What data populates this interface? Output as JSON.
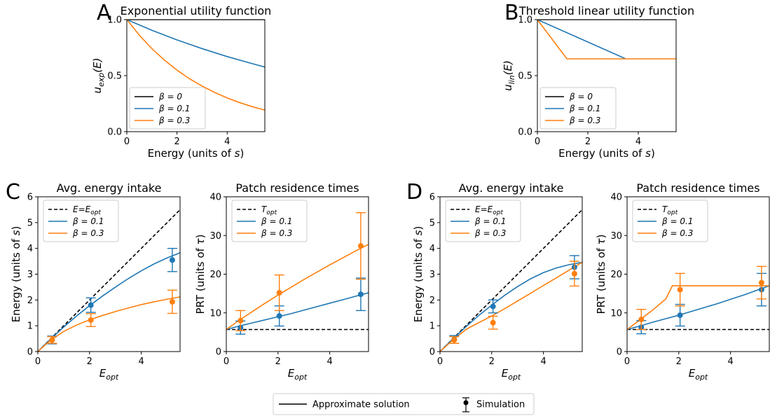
{
  "colors": {
    "black": "#000000",
    "blue": "#1f77b4",
    "orange": "#ff7f0e"
  },
  "chart_data": [
    {
      "id": "A",
      "panel_letter": "A",
      "type": "line",
      "title": "Exponential utility function",
      "xlabel": "Energy (units of s)",
      "ylabel": "u_exp(E)",
      "xlim": [
        0,
        5.5
      ],
      "ylim": [
        0,
        1.0
      ],
      "xticks": [
        0,
        2,
        4
      ],
      "xtick_labels": [
        "0",
        "2",
        "4"
      ],
      "yticks": [
        0.0,
        0.5,
        1.0
      ],
      "ytick_labels": [
        "0.0",
        "0.5",
        "1.0"
      ],
      "legend_position": "bottom-left",
      "series": [
        {
          "name": "β = 0",
          "color": "#000000",
          "x": [
            0,
            1,
            2,
            3,
            4,
            5,
            5.5
          ],
          "y": [
            1.0,
            1.0,
            1.0,
            1.0,
            1.0,
            1.0,
            1.0
          ]
        },
        {
          "name": "β = 0.1",
          "color": "#1f77b4",
          "x": [
            0,
            1,
            2,
            3,
            4,
            5,
            5.5
          ],
          "y": [
            1.0,
            0.905,
            0.819,
            0.741,
            0.67,
            0.607,
            0.577
          ]
        },
        {
          "name": "β = 0.3",
          "color": "#ff7f0e",
          "x": [
            0,
            0.5,
            1,
            1.5,
            2,
            2.5,
            3,
            3.5,
            4,
            4.5,
            5,
            5.5
          ],
          "y": [
            1.0,
            0.861,
            0.741,
            0.638,
            0.549,
            0.472,
            0.407,
            0.35,
            0.301,
            0.259,
            0.223,
            0.192
          ]
        }
      ]
    },
    {
      "id": "B",
      "panel_letter": "B",
      "type": "line",
      "title": "Threshold linear utility function",
      "xlabel": "Energy (units of s)",
      "ylabel": "u_lin(E)",
      "xlim": [
        0,
        5.5
      ],
      "ylim": [
        0,
        1.0
      ],
      "xticks": [
        0,
        2,
        4
      ],
      "xtick_labels": [
        "0",
        "2",
        "4"
      ],
      "yticks": [
        0.0,
        0.5,
        1.0
      ],
      "ytick_labels": [
        "0.0",
        "0.5",
        "1.0"
      ],
      "legend_position": "bottom-left",
      "series": [
        {
          "name": "β = 0",
          "color": "#000000",
          "x": [
            0,
            5.5
          ],
          "y": [
            1.0,
            1.0
          ]
        },
        {
          "name": "β = 0.1",
          "color": "#1f77b4",
          "x": [
            0,
            3.5
          ],
          "y": [
            1.0,
            0.65
          ]
        },
        {
          "name": "β = 0.3",
          "color": "#ff7f0e",
          "x": [
            0,
            1.17,
            5.5
          ],
          "y": [
            1.0,
            0.65,
            0.65
          ]
        }
      ]
    },
    {
      "id": "C1",
      "panel_letter": "C",
      "type": "line",
      "title": "Avg. energy intake",
      "xlabel": "E_opt",
      "ylabel": "Energy (units of s)",
      "xlim": [
        0,
        5.5
      ],
      "ylim": [
        0,
        6
      ],
      "xticks": [
        0,
        2,
        4
      ],
      "xtick_labels": [
        "0",
        "2",
        "4"
      ],
      "yticks": [
        0,
        1,
        2,
        3,
        4,
        5,
        6
      ],
      "ytick_labels": [
        "0",
        "1",
        "2",
        "3",
        "4",
        "5",
        "6"
      ],
      "legend_position": "top-left",
      "legend_names": [
        "E=E_opt",
        "β = 0.1",
        "β = 0.3"
      ],
      "reference": {
        "x": [
          0,
          5.5
        ],
        "y": [
          0,
          5.5
        ],
        "color": "#000000"
      },
      "series": [
        {
          "name": "β = 0.1",
          "color": "#1f77b4",
          "x": [
            0,
            0.5,
            1,
            1.5,
            2,
            2.5,
            3,
            3.5,
            4,
            4.5,
            5,
            5.5
          ],
          "y": [
            0,
            0.49,
            0.95,
            1.38,
            1.78,
            2.15,
            2.5,
            2.83,
            3.13,
            3.4,
            3.63,
            3.83
          ]
        },
        {
          "name": "β = 0.3",
          "color": "#ff7f0e",
          "x": [
            0,
            0.5,
            1,
            1.5,
            2,
            2.5,
            3,
            3.5,
            4,
            4.5,
            5,
            5.5
          ],
          "y": [
            0,
            0.45,
            0.78,
            1.03,
            1.23,
            1.4,
            1.55,
            1.69,
            1.82,
            1.93,
            2.03,
            2.12
          ]
        }
      ],
      "simulation": [
        {
          "name": "β = 0.1",
          "color": "#1f77b4",
          "x": [
            0.55,
            2.05,
            5.2
          ],
          "y": [
            0.45,
            1.8,
            3.55
          ],
          "yerr": [
            0.15,
            0.28,
            0.45
          ]
        },
        {
          "name": "β = 0.3",
          "color": "#ff7f0e",
          "x": [
            0.55,
            2.05,
            5.2
          ],
          "y": [
            0.45,
            1.22,
            1.93
          ],
          "yerr": [
            0.13,
            0.25,
            0.45
          ]
        }
      ]
    },
    {
      "id": "C2",
      "panel_letter": "",
      "type": "line",
      "title": "Patch residence times",
      "xlabel": "E_opt",
      "ylabel": "PRT (units of τ)",
      "xlim": [
        0,
        5.5
      ],
      "ylim": [
        0,
        40
      ],
      "xticks": [
        0,
        2,
        4
      ],
      "xtick_labels": [
        "0",
        "2",
        "4"
      ],
      "yticks": [
        0,
        10,
        20,
        30,
        40
      ],
      "ytick_labels": [
        "0",
        "10",
        "20",
        "30",
        "40"
      ],
      "legend_position": "top-left",
      "legend_names": [
        "T_opt",
        "β = 0.1",
        "β = 0.3"
      ],
      "reference": {
        "x": [
          0,
          5.5
        ],
        "y": [
          5.7,
          5.7
        ],
        "color": "#000000"
      },
      "series": [
        {
          "name": "β = 0.1",
          "color": "#1f77b4",
          "x": [
            0,
            0.5,
            1,
            1.5,
            2,
            2.5,
            3,
            3.5,
            4,
            4.5,
            5,
            5.5
          ],
          "y": [
            5.7,
            6.6,
            7.4,
            8.2,
            9.0,
            9.8,
            10.7,
            11.6,
            12.5,
            13.4,
            14.3,
            15.2
          ]
        },
        {
          "name": "β = 0.3",
          "color": "#ff7f0e",
          "x": [
            0,
            0.5,
            1,
            1.5,
            2,
            2.5,
            3,
            3.5,
            4,
            4.5,
            5,
            5.5
          ],
          "y": [
            5.7,
            8.1,
            10.3,
            12.5,
            14.6,
            16.6,
            18.6,
            20.5,
            22.4,
            24.2,
            26.0,
            27.7
          ]
        }
      ],
      "simulation": [
        {
          "name": "β = 0.1",
          "color": "#1f77b4",
          "x": [
            0.55,
            2.05,
            5.2
          ],
          "y": [
            6.2,
            9.2,
            14.8
          ],
          "yerr": [
            1.7,
            2.6,
            4.2
          ]
        },
        {
          "name": "β = 0.3",
          "color": "#ff7f0e",
          "x": [
            0.55,
            2.05,
            5.2
          ],
          "y": [
            8.0,
            15.2,
            27.3
          ],
          "yerr": [
            2.6,
            4.6,
            8.6
          ]
        }
      ]
    },
    {
      "id": "D1",
      "panel_letter": "D",
      "type": "line",
      "title": "Avg. energy intake",
      "xlabel": "E_opt",
      "ylabel": "Energy (units of s)",
      "xlim": [
        0,
        5.5
      ],
      "ylim": [
        0,
        6
      ],
      "xticks": [
        0,
        2,
        4
      ],
      "xtick_labels": [
        "0",
        "2",
        "4"
      ],
      "yticks": [
        0,
        1,
        2,
        3,
        4,
        5,
        6
      ],
      "ytick_labels": [
        "0",
        "1",
        "2",
        "3",
        "4",
        "5",
        "6"
      ],
      "legend_position": "top-left",
      "legend_names": [
        "E=E_opt",
        "β = 0.1",
        "β = 0.3"
      ],
      "reference": {
        "x": [
          0,
          5.5
        ],
        "y": [
          0,
          5.5
        ],
        "color": "#000000"
      },
      "series": [
        {
          "name": "β = 0.1",
          "color": "#1f77b4",
          "x": [
            0,
            0.5,
            1,
            1.5,
            2,
            2.5,
            3,
            3.5,
            4,
            4.5,
            5,
            5.5
          ],
          "y": [
            0,
            0.49,
            0.96,
            1.4,
            1.8,
            2.18,
            2.52,
            2.82,
            3.06,
            3.24,
            3.37,
            3.46
          ]
        },
        {
          "name": "β = 0.3",
          "color": "#ff7f0e",
          "x": [
            0,
            0.5,
            1,
            1.17,
            1.5,
            2,
            2.5,
            3,
            3.5,
            4,
            4.5,
            5,
            5.5
          ],
          "y": [
            0,
            0.45,
            0.85,
            0.95,
            1.12,
            1.38,
            1.66,
            1.96,
            2.26,
            2.56,
            2.86,
            3.16,
            3.46
          ]
        }
      ],
      "simulation": [
        {
          "name": "β = 0.1",
          "color": "#1f77b4",
          "x": [
            0.55,
            2.05,
            5.2
          ],
          "y": [
            0.47,
            1.75,
            3.27
          ],
          "yerr": [
            0.15,
            0.25,
            0.45
          ]
        },
        {
          "name": "β = 0.3",
          "color": "#ff7f0e",
          "x": [
            0.55,
            2.05,
            5.2
          ],
          "y": [
            0.45,
            1.12,
            3.02
          ],
          "yerr": [
            0.13,
            0.25,
            0.48
          ]
        }
      ]
    },
    {
      "id": "D2",
      "panel_letter": "",
      "type": "line",
      "title": "Patch residence times",
      "xlabel": "E_opt",
      "ylabel": "PRT (units of τ)",
      "xlim": [
        0,
        5.5
      ],
      "ylim": [
        0,
        40
      ],
      "xticks": [
        0,
        2,
        4
      ],
      "xtick_labels": [
        "0",
        "2",
        "4"
      ],
      "yticks": [
        0,
        10,
        20,
        30,
        40
      ],
      "ytick_labels": [
        "0",
        "10",
        "20",
        "30",
        "40"
      ],
      "legend_position": "top-left",
      "legend_names": [
        "T_opt",
        "β = 0.1",
        "β = 0.3"
      ],
      "reference": {
        "x": [
          0,
          5.5
        ],
        "y": [
          5.7,
          5.7
        ],
        "color": "#000000"
      },
      "series": [
        {
          "name": "β = 0.1",
          "color": "#1f77b4",
          "x": [
            0,
            0.5,
            1,
            1.5,
            2,
            2.5,
            3,
            3.5,
            4,
            4.5,
            5,
            5.5
          ],
          "y": [
            5.7,
            6.6,
            7.6,
            8.5,
            9.4,
            10.4,
            11.4,
            12.4,
            13.5,
            14.6,
            15.8,
            17.0
          ]
        },
        {
          "name": "β = 0.3",
          "color": "#ff7f0e",
          "x": [
            0,
            0.5,
            1,
            1.5,
            1.75,
            5.5
          ],
          "y": [
            5.7,
            8.2,
            10.8,
            13.6,
            17.0,
            17.0
          ]
        }
      ],
      "simulation": [
        {
          "name": "β = 0.1",
          "color": "#1f77b4",
          "x": [
            0.55,
            2.05,
            5.2
          ],
          "y": [
            6.3,
            9.4,
            16.0
          ],
          "yerr": [
            1.7,
            2.8,
            4.2
          ]
        },
        {
          "name": "β = 0.3",
          "color": "#ff7f0e",
          "x": [
            0.55,
            2.05,
            5.2
          ],
          "y": [
            8.3,
            16.0,
            17.8
          ],
          "yerr": [
            2.6,
            4.2,
            4.2
          ]
        }
      ]
    }
  ],
  "bottom_legend": {
    "approx_label": "Approximate solution",
    "sim_label": "Simulation"
  }
}
